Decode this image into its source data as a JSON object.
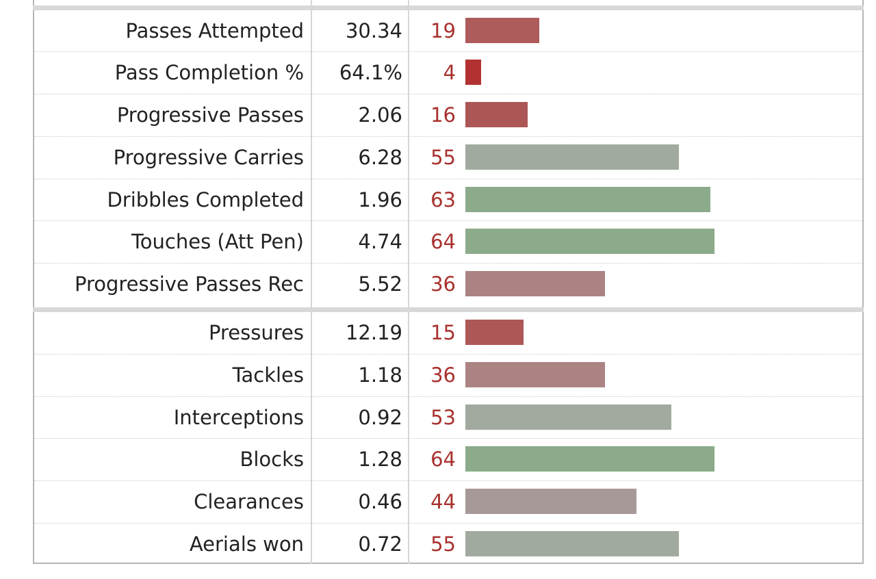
{
  "table": {
    "rows": [
      {
        "stat": "Passes Attempted",
        "per90": "30.34",
        "percentile": 19,
        "percentile_label": "19",
        "bar_color": "#ad5b5b"
      },
      {
        "stat": "Pass Completion %",
        "per90": "64.1%",
        "percentile": 4,
        "percentile_label": "4",
        "bar_color": "#b23232"
      },
      {
        "stat": "Progressive Passes",
        "per90": "2.06",
        "percentile": 16,
        "percentile_label": "16",
        "bar_color": "#ad5656"
      },
      {
        "stat": "Progressive Carries",
        "per90": "6.28",
        "percentile": 55,
        "percentile_label": "55",
        "bar_color": "#a1aa9e"
      },
      {
        "stat": "Dribbles Completed",
        "per90": "1.96",
        "percentile": 63,
        "percentile_label": "63",
        "bar_color": "#8bab8a"
      },
      {
        "stat": "Touches (Att Pen)",
        "per90": "4.74",
        "percentile": 64,
        "percentile_label": "64",
        "bar_color": "#8bab8a"
      },
      {
        "stat": "Progressive Passes Rec",
        "per90": "5.52",
        "percentile": 36,
        "percentile_label": "36",
        "bar_color": "#ab8383"
      },
      {
        "stat": "Pressures",
        "per90": "12.19",
        "percentile": 15,
        "percentile_label": "15",
        "bar_color": "#ae5757"
      },
      {
        "stat": "Tackles",
        "per90": "1.18",
        "percentile": 36,
        "percentile_label": "36",
        "bar_color": "#ab8383"
      },
      {
        "stat": "Interceptions",
        "per90": "0.92",
        "percentile": 53,
        "percentile_label": "53",
        "bar_color": "#a2aa9f"
      },
      {
        "stat": "Blocks",
        "per90": "1.28",
        "percentile": 64,
        "percentile_label": "64",
        "bar_color": "#8bab8a"
      },
      {
        "stat": "Clearances",
        "per90": "0.46",
        "percentile": 44,
        "percentile_label": "44",
        "bar_color": "#a89999"
      },
      {
        "stat": "Aerials won",
        "per90": "0.72",
        "percentile": 55,
        "percentile_label": "55",
        "bar_color": "#a1aa9e"
      }
    ]
  }
}
